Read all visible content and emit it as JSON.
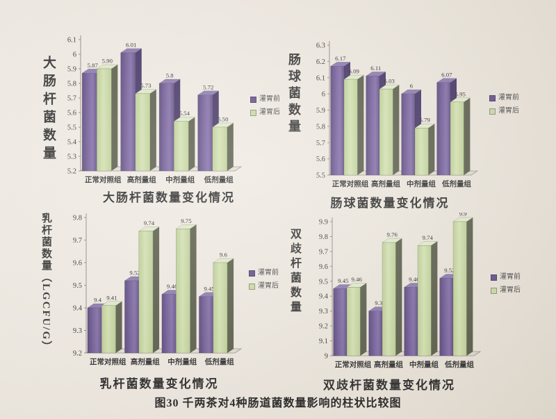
{
  "page": {
    "caption": "图30 千两茶对4种肠道菌数量影响的柱状比较图"
  },
  "legend": {
    "before": "灌胃前",
    "after": "灌胃后",
    "before_color": "#5a4486",
    "after_color": "#c5d6a0"
  },
  "chart_data": [
    {
      "type": "bar",
      "id": "ecoli",
      "axis_title": "大肠杆菌数量",
      "title": "大肠杆菌数量变化情况",
      "categories": [
        "正常对照组",
        "高剂量组",
        "中剂量组",
        "低剂量组"
      ],
      "series": [
        {
          "name": "灌胃前",
          "values": [
            5.87,
            6.01,
            5.8,
            5.72
          ],
          "labels": [
            "5.87",
            "6.01",
            "5.8",
            "5.72"
          ]
        },
        {
          "name": "灌胃后",
          "values": [
            5.9,
            5.73,
            5.54,
            5.5
          ],
          "labels": [
            "5.90",
            "5.73",
            "5.54",
            "5.50"
          ]
        }
      ],
      "ylim": [
        5.2,
        6.1
      ],
      "yticks": [
        "5.2",
        "5.3",
        "5.4",
        "5.5",
        "5.6",
        "5.7",
        "5.8",
        "5.9",
        "6",
        "6.1"
      ],
      "grid": false,
      "legend_position": "right"
    },
    {
      "type": "bar",
      "id": "enterococcus",
      "axis_title": "肠球菌数量",
      "title": "肠球菌数量变化情况",
      "categories": [
        "正常对照组",
        "高剂量组",
        "中剂量组",
        "低剂量组"
      ],
      "series": [
        {
          "name": "灌胃前",
          "values": [
            6.17,
            6.11,
            6.0,
            6.07
          ],
          "labels": [
            "6.17",
            "6.11",
            "6",
            "6.07"
          ]
        },
        {
          "name": "灌胃后",
          "values": [
            6.09,
            6.03,
            5.79,
            5.95
          ],
          "labels": [
            "6.09",
            "6.03",
            "5.79",
            "5.95"
          ]
        }
      ],
      "ylim": [
        5.5,
        6.3
      ],
      "yticks": [
        "5.5",
        "5.6",
        "5.7",
        "5.8",
        "5.9",
        "6",
        "6.1",
        "6.2",
        "6.3"
      ],
      "grid": false,
      "legend_position": "right"
    },
    {
      "type": "bar",
      "id": "lactobacillus",
      "axis_title": "乳杆菌数量（LGCFU/G）",
      "title": "乳杆菌数量变化情况",
      "categories": [
        "正常对照组",
        "高剂量组",
        "中剂量组",
        "低剂量组"
      ],
      "series": [
        {
          "name": "灌胃前",
          "values": [
            9.4,
            9.52,
            9.46,
            9.45
          ],
          "labels": [
            "9.4",
            "9.52",
            "9.46",
            "9.45"
          ]
        },
        {
          "name": "灌胃后",
          "values": [
            9.41,
            9.74,
            9.75,
            9.6
          ],
          "labels": [
            "9.41",
            "9.74",
            "9.75",
            "9.6"
          ]
        }
      ],
      "ylim": [
        9.2,
        9.8
      ],
      "yticks": [
        "9.2",
        "9.3",
        "9.4",
        "9.5",
        "9.6",
        "9.7",
        "9.8"
      ],
      "grid": false,
      "legend_position": "right"
    },
    {
      "type": "bar",
      "id": "bifidobacterium",
      "axis_title": "双歧杆菌数量",
      "title": "双歧杆菌数量变化情况",
      "categories": [
        "正常对照组",
        "高剂量组",
        "中剂量组",
        "低剂量组"
      ],
      "series": [
        {
          "name": "灌胃前",
          "values": [
            9.45,
            9.3,
            9.46,
            9.52
          ],
          "labels": [
            "9.45",
            "9.3",
            "9.46",
            "9.52"
          ]
        },
        {
          "name": "灌胃后",
          "values": [
            9.46,
            9.76,
            9.74,
            9.9
          ],
          "labels": [
            "9.46",
            "9.76",
            "9.74",
            "9.9"
          ]
        }
      ],
      "ylim": [
        9.0,
        9.9
      ],
      "yticks": [
        "9",
        "9.1",
        "9.2",
        "9.3",
        "9.4",
        "9.5",
        "9.6",
        "9.7",
        "9.8",
        "9.9"
      ],
      "grid": false,
      "legend_position": "right"
    }
  ],
  "colors": {
    "bar_before_front": "#5f4a8c",
    "bar_before_side": "#38285c",
    "bar_before_top": "#8472ab",
    "bar_after_front": "#c6d7a0",
    "bar_after_side": "#50533f",
    "bar_after_top": "#dfe9c6",
    "paper": "#eee8df",
    "text": "#2b2b2b"
  }
}
